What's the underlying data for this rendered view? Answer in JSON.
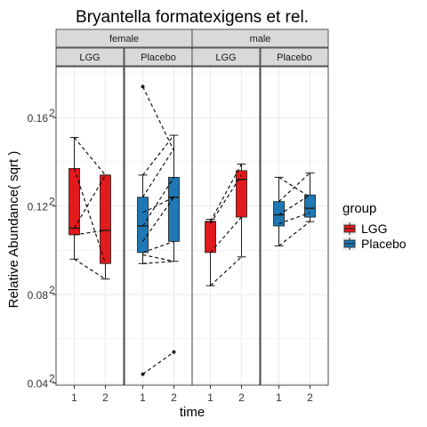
{
  "chart_data": {
    "type": "box",
    "title": "Bryantella formatexigens et rel.",
    "xlabel": "time",
    "ylabel": "Relative Abundance( sqrt )",
    "y_tick_values": [
      0.04,
      0.08,
      0.12,
      0.16
    ],
    "y_tick_labels": [
      "0.04",
      "0.08",
      "0.12",
      "0.16"
    ],
    "y_tick_superscript": "2",
    "ylim": [
      0.039,
      0.183
    ],
    "x_categories": [
      "1",
      "2"
    ],
    "facet_rows_label": [
      "female",
      "male"
    ],
    "facets": [
      {
        "sex": "female",
        "group": "LGG",
        "color": "#e31a1c",
        "boxes": [
          {
            "time": "1",
            "whisker_low": 0.096,
            "q1": 0.107,
            "median": 0.11,
            "q3": 0.137,
            "whisker_high": 0.151
          },
          {
            "time": "2",
            "whisker_low": 0.087,
            "q1": 0.094,
            "median": 0.109,
            "q3": 0.134,
            "whisker_high": 0.134
          }
        ],
        "pairs": [
          [
            0.151,
            0.134
          ],
          [
            0.137,
            0.094
          ],
          [
            0.11,
            0.134
          ],
          [
            0.107,
            0.109
          ],
          [
            0.096,
            0.087
          ]
        ],
        "outliers": []
      },
      {
        "sex": "female",
        "group": "Placebo",
        "color": "#1f78b4",
        "boxes": [
          {
            "time": "1",
            "whisker_low": 0.094,
            "q1": 0.099,
            "median": 0.111,
            "q3": 0.124,
            "whisker_high": 0.134
          },
          {
            "time": "2",
            "whisker_low": 0.095,
            "q1": 0.104,
            "median": 0.124,
            "q3": 0.133,
            "whisker_high": 0.152
          }
        ],
        "pairs": [
          [
            0.174,
            0.145
          ],
          [
            0.134,
            0.152
          ],
          [
            0.124,
            0.146
          ],
          [
            0.117,
            0.124
          ],
          [
            0.111,
            0.133
          ],
          [
            0.104,
            0.124
          ],
          [
            0.099,
            0.104
          ],
          [
            0.098,
            0.095
          ],
          [
            0.094,
            0.095
          ],
          [
            0.044,
            0.054
          ]
        ],
        "outliers": [
          {
            "time": "1",
            "value": 0.174
          },
          {
            "time": "1",
            "value": 0.044
          },
          {
            "time": "2",
            "value": 0.054
          }
        ]
      },
      {
        "sex": "male",
        "group": "LGG",
        "color": "#e31a1c",
        "boxes": [
          {
            "time": "1",
            "whisker_low": 0.084,
            "q1": 0.099,
            "median": 0.113,
            "q3": 0.113,
            "whisker_high": 0.114
          },
          {
            "time": "2",
            "whisker_low": 0.097,
            "q1": 0.115,
            "median": 0.132,
            "q3": 0.136,
            "whisker_high": 0.139
          }
        ],
        "pairs": [
          [
            0.113,
            0.139
          ],
          [
            0.112,
            0.134
          ],
          [
            0.099,
            0.115
          ],
          [
            0.084,
            0.097
          ]
        ],
        "outliers": []
      },
      {
        "sex": "male",
        "group": "Placebo",
        "color": "#1f78b4",
        "boxes": [
          {
            "time": "1",
            "whisker_low": 0.102,
            "q1": 0.111,
            "median": 0.116,
            "q3": 0.122,
            "whisker_high": 0.133
          },
          {
            "time": "2",
            "whisker_low": 0.113,
            "q1": 0.115,
            "median": 0.119,
            "q3": 0.125,
            "whisker_high": 0.135
          }
        ],
        "pairs": [
          [
            0.133,
            0.124
          ],
          [
            0.122,
            0.135
          ],
          [
            0.116,
            0.125
          ],
          [
            0.112,
            0.117
          ],
          [
            0.102,
            0.113
          ]
        ],
        "outliers": []
      }
    ],
    "legend": {
      "title": "group",
      "position": "right",
      "items": [
        {
          "label": "LGG",
          "color": "#e31a1c"
        },
        {
          "label": "Placebo",
          "color": "#1f78b4"
        }
      ]
    },
    "grid": true,
    "panel_background": "#ffffff",
    "grid_color": "#ebebeb",
    "strip_background": "#d9d9d9"
  }
}
